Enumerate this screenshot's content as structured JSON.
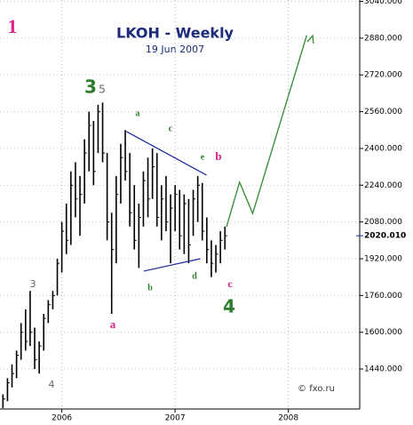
{
  "chart_data": {
    "type": "ohlc",
    "title": "LKOH - Weekly",
    "subtitle": "19 Jun 2007",
    "xlim": [
      2005.454,
      2008.63
    ],
    "ylim": [
      1266,
      3046
    ],
    "xticks": [
      2006,
      2007,
      2008
    ],
    "yticks": [
      {
        "value": 3040,
        "label": "3040.000"
      },
      {
        "value": 2880,
        "label": "2880.000"
      },
      {
        "value": 2720,
        "label": "2720.000"
      },
      {
        "value": 2560,
        "label": "2560.000"
      },
      {
        "value": 2400,
        "label": "2400.000"
      },
      {
        "value": 2240,
        "label": "2240.000"
      },
      {
        "value": 2080,
        "label": "2080.000"
      },
      {
        "value": 1920,
        "label": "1920.000"
      },
      {
        "value": 1760,
        "label": "1760.000"
      },
      {
        "value": 1600,
        "label": "1600.000"
      },
      {
        "value": 1440,
        "label": "1440.000"
      }
    ],
    "last_price": {
      "value": 2020.01,
      "label": "2020.010",
      "color": "#1c2a9c"
    },
    "grid": true,
    "color": "#000000",
    "x": [
      2005.48,
      2005.52,
      2005.56,
      2005.6,
      2005.64,
      2005.68,
      2005.72,
      2005.76,
      2005.8,
      2005.84,
      2005.88,
      2005.92,
      2005.96,
      2006.0,
      2006.04,
      2006.08,
      2006.12,
      2006.16,
      2006.2,
      2006.24,
      2006.28,
      2006.32,
      2006.36,
      2006.4,
      2006.44,
      2006.48,
      2006.52,
      2006.56,
      2006.6,
      2006.64,
      2006.68,
      2006.72,
      2006.76,
      2006.8,
      2006.84,
      2006.88,
      2006.92,
      2006.96,
      2007.0,
      2007.04,
      2007.08,
      2007.12,
      2007.16,
      2007.2,
      2007.24,
      2007.28,
      2007.32,
      2007.36,
      2007.4,
      2007.44
    ],
    "high": [
      1330,
      1400,
      1460,
      1520,
      1640,
      1700,
      1780,
      1620,
      1560,
      1680,
      1740,
      1780,
      1920,
      2080,
      2160,
      2300,
      2340,
      2280,
      2440,
      2560,
      2520,
      2590,
      2600,
      2380,
      2120,
      2280,
      2420,
      2480,
      2380,
      2240,
      2160,
      2300,
      2360,
      2400,
      2380,
      2240,
      2280,
      2200,
      2240,
      2220,
      2200,
      2180,
      2220,
      2280,
      2250,
      2100,
      2000,
      1980,
      2040,
      2060
    ],
    "low": [
      1270,
      1300,
      1360,
      1400,
      1480,
      1520,
      1540,
      1440,
      1420,
      1520,
      1640,
      1700,
      1760,
      1860,
      1940,
      1980,
      2100,
      2020,
      2160,
      2300,
      2240,
      2380,
      2340,
      2000,
      1680,
      1900,
      2160,
      2260,
      2060,
      1960,
      1880,
      2060,
      2100,
      2180,
      2060,
      2000,
      2040,
      1900,
      2040,
      1960,
      1940,
      1900,
      2020,
      2080,
      2000,
      1900,
      1840,
      1860,
      1900,
      1960
    ],
    "close": [
      1310,
      1380,
      1420,
      1500,
      1600,
      1560,
      1600,
      1480,
      1540,
      1660,
      1720,
      1760,
      1900,
      2040,
      2000,
      2240,
      2180,
      2200,
      2380,
      2500,
      2300,
      2560,
      2380,
      2080,
      1960,
      2200,
      2360,
      2300,
      2120,
      2000,
      2100,
      2260,
      2180,
      2320,
      2100,
      2180,
      2080,
      2140,
      2200,
      2020,
      2160,
      1980,
      2180,
      2240,
      2040,
      1960,
      1900,
      1940,
      2000,
      2020
    ],
    "projection": {
      "color": "#2e8b2e",
      "x": [
        2007.454,
        2007.569,
        2007.685,
        2008.162
      ],
      "values": [
        2059,
        2253,
        2117,
        2892
      ]
    },
    "trendlines": [
      {
        "color": "#1c2a9c",
        "x": [
          2006.569,
          2007.277
        ],
        "values": [
          2474,
          2284
        ]
      },
      {
        "color": "#1c2a9c",
        "x": [
          2006.723,
          2007.223
        ],
        "values": [
          1866,
          1920
        ]
      }
    ],
    "annotations": [
      {
        "text": "1",
        "color": "#e0208a"
      },
      {
        "text": "3",
        "color": "#2e7d2e"
      },
      {
        "text": "5",
        "color": "#666666"
      },
      {
        "text": "a",
        "color": "#2e7d2e"
      },
      {
        "text": "c",
        "color": "#2e7d2e"
      },
      {
        "text": "e",
        "color": "#2e7d2e"
      },
      {
        "text": "b",
        "color": "#e0208a"
      },
      {
        "text": "b",
        "color": "#2e7d2e"
      },
      {
        "text": "d",
        "color": "#2e7d2e"
      },
      {
        "text": "c",
        "color": "#e0208a"
      },
      {
        "text": "4",
        "color": "#2e7d2e"
      },
      {
        "text": "a",
        "color": "#e0208a"
      },
      {
        "text": "3",
        "color": "#666666"
      },
      {
        "text": "4",
        "color": "#666666"
      },
      {
        "text": "© fxo.ru",
        "color": "#333333"
      }
    ]
  }
}
